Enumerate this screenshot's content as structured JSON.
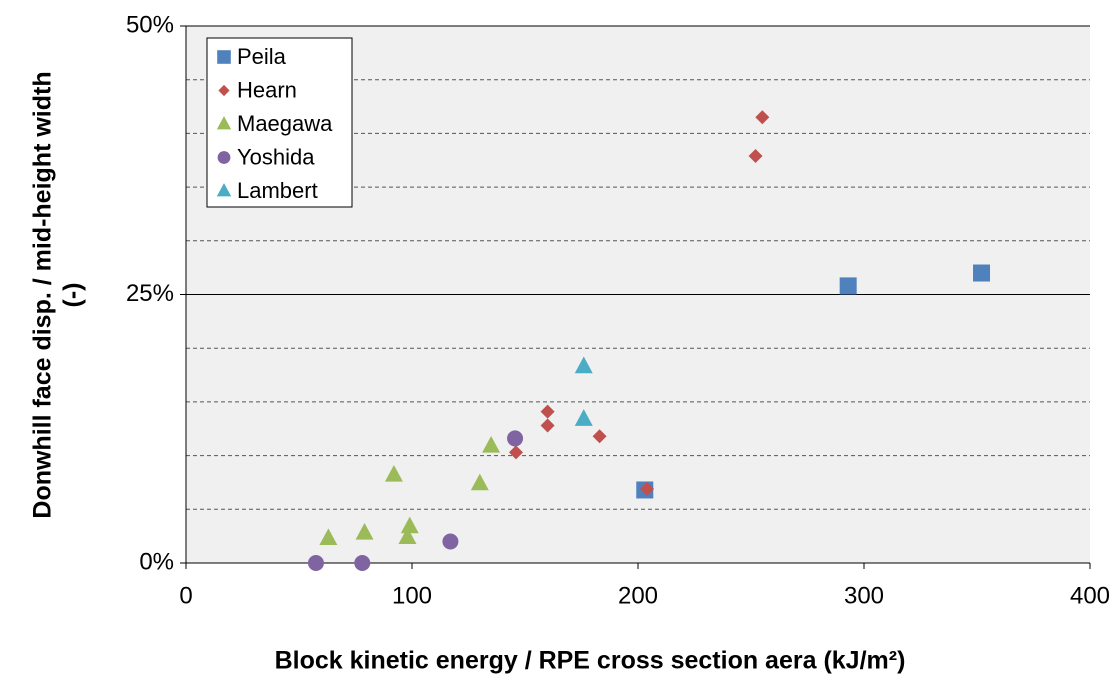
{
  "chart_data": {
    "type": "scatter",
    "xlabel": "Block kinetic energy / RPE cross section aera (kJ/m²)",
    "ylabel": [
      "Donwhill face disp. / mid-height width",
      "(-)"
    ],
    "xlim": [
      0,
      400
    ],
    "xticks": [
      0,
      100,
      200,
      300,
      400
    ],
    "ylim": [
      0,
      50
    ],
    "yticks": [
      {
        "value": 0,
        "label": "0%"
      },
      {
        "value": 25,
        "label": "25%"
      },
      {
        "value": 50,
        "label": "50%"
      }
    ],
    "yminor": [
      5,
      10,
      15,
      20,
      30,
      35,
      40,
      45
    ],
    "grid": true,
    "legend": "upper left",
    "series": [
      {
        "name": "Peila",
        "color": "#4f81bd",
        "marker": "square",
        "x": [
          203,
          293,
          352
        ],
        "values": [
          6.8,
          25.8,
          27.0
        ]
      },
      {
        "name": "Hearn",
        "color": "#c0504d",
        "marker": "diamond",
        "x": [
          255,
          252,
          160,
          160,
          183,
          146,
          204
        ],
        "values": [
          41.5,
          37.9,
          14.1,
          12.8,
          11.8,
          10.3,
          6.9
        ]
      },
      {
        "name": "Maegawa",
        "color": "#9bbb59",
        "marker": "triangle",
        "x": [
          92,
          135,
          130,
          63,
          79,
          99,
          98
        ],
        "values": [
          8.2,
          10.9,
          7.4,
          2.3,
          2.8,
          3.4,
          2.4
        ]
      },
      {
        "name": "Yoshida",
        "color": "#8064a2",
        "marker": "circle",
        "x": [
          57.5,
          78,
          117,
          145.6
        ],
        "values": [
          0,
          0,
          2.0,
          11.6
        ]
      },
      {
        "name": "Lambert",
        "color": "#4bacc6",
        "marker": "triangle",
        "x": [
          176,
          176
        ],
        "values": [
          18.3,
          13.4
        ]
      }
    ]
  }
}
